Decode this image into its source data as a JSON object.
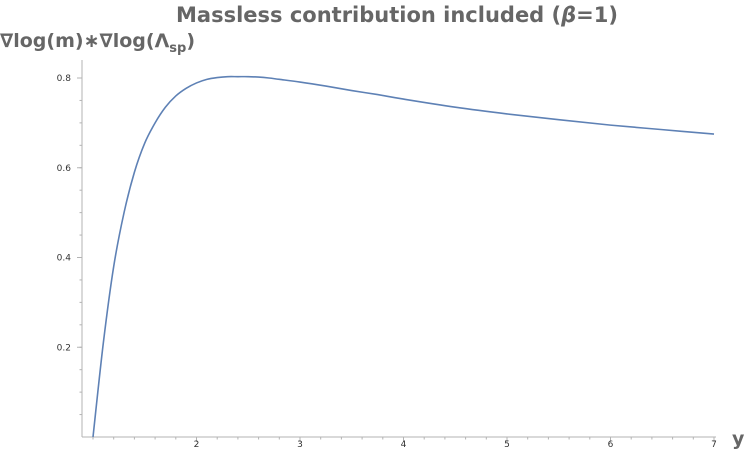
{
  "chart_data": {
    "type": "line",
    "title_pre": "Massless contribution included (",
    "title_beta": "β",
    "title_post": "=1)",
    "ylabel_main": "∇log(m)∗∇log(Λ",
    "ylabel_sub": "sp",
    "ylabel_close": ")",
    "xlabel": "y",
    "xlim": [
      1,
      7
    ],
    "ylim": [
      0,
      0.8
    ],
    "x_ticks": [
      {
        "value": 2,
        "label": "2"
      },
      {
        "value": 3,
        "label": "3"
      },
      {
        "value": 4,
        "label": "4"
      },
      {
        "value": 5,
        "label": "5"
      },
      {
        "value": 6,
        "label": "6"
      },
      {
        "value": 7,
        "label": "7"
      }
    ],
    "y_ticks": [
      {
        "value": 0.2,
        "label": "0.2"
      },
      {
        "value": 0.4,
        "label": "0.4"
      },
      {
        "value": 0.6,
        "label": "0.6"
      },
      {
        "value": 0.8,
        "label": "0.8"
      }
    ],
    "series": [
      {
        "color": "#5e81b5",
        "x": [
          1.0,
          1.1,
          1.2,
          1.3,
          1.4,
          1.5,
          1.6,
          1.7,
          1.8,
          1.9,
          2.0,
          2.1,
          2.2,
          2.3,
          2.4,
          2.5,
          2.6,
          2.7,
          2.8,
          3.0,
          3.25,
          3.5,
          3.75,
          4.0,
          4.5,
          5.0,
          5.5,
          6.0,
          6.5,
          7.0
        ],
        "y": [
          0.0,
          0.21,
          0.38,
          0.5,
          0.59,
          0.655,
          0.7,
          0.735,
          0.76,
          0.777,
          0.789,
          0.797,
          0.801,
          0.803,
          0.803,
          0.803,
          0.802,
          0.8,
          0.797,
          0.791,
          0.782,
          0.772,
          0.763,
          0.753,
          0.735,
          0.72,
          0.707,
          0.695,
          0.685,
          0.675
        ]
      }
    ]
  }
}
